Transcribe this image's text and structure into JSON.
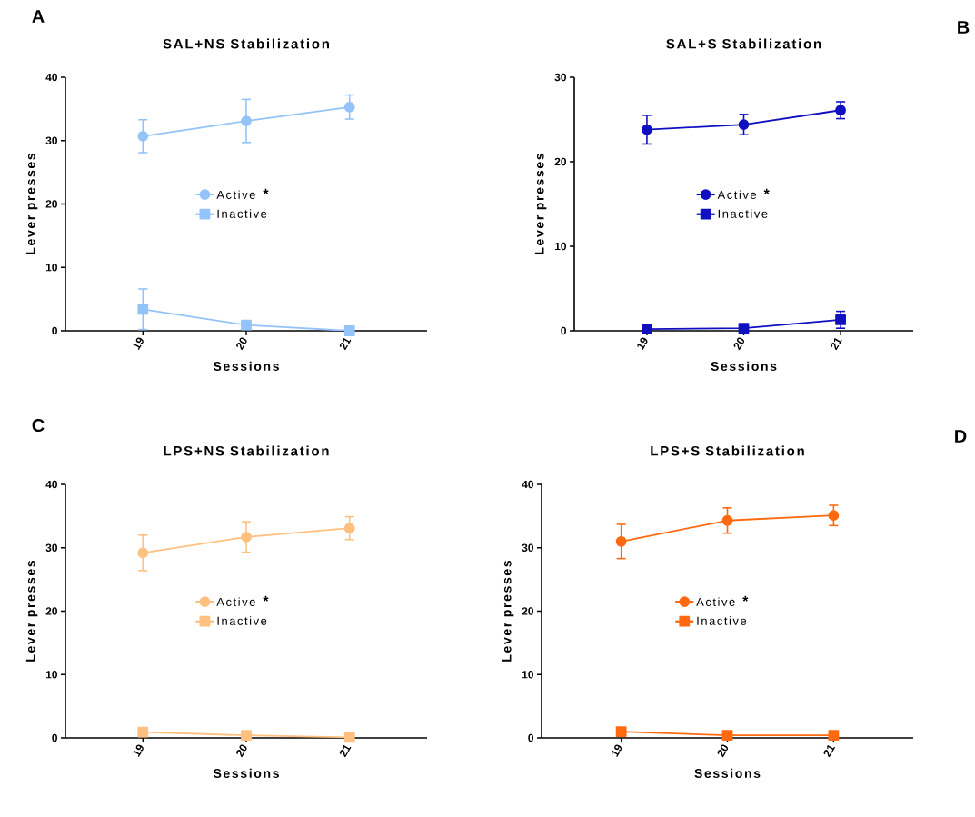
{
  "chart_data": [
    {
      "type": "line",
      "title": "SAL+NS Stabilization",
      "xlabel": "Sessions",
      "ylabel": "Lever presses",
      "categories": [
        "19",
        "20",
        "21"
      ],
      "ylim": [
        0,
        40
      ],
      "yticks": [
        0,
        10,
        20,
        30,
        40
      ],
      "legend": "center",
      "annotations": [
        "A",
        "*"
      ],
      "series": [
        {
          "name": "Active",
          "color": "#94c3fa",
          "marker": "circle",
          "values": [
            30.7,
            33.1,
            35.3
          ],
          "errors": [
            2.6,
            3.4,
            1.9
          ]
        },
        {
          "name": "Inactive",
          "color": "#94c3fa",
          "marker": "square",
          "values": [
            3.4,
            0.9,
            0
          ],
          "errors": [
            3.2,
            null,
            null
          ]
        }
      ]
    },
    {
      "type": "line",
      "title": "SAL+S Stabilization",
      "xlabel": "Sessions",
      "ylabel": "Lever presses",
      "categories": [
        "19",
        "20",
        "21"
      ],
      "ylim": [
        0,
        30
      ],
      "yticks": [
        0,
        10,
        20,
        30
      ],
      "legend": "center",
      "annotations": [
        "B",
        "*"
      ],
      "series": [
        {
          "name": "Active",
          "color": "#1010c0",
          "marker": "circle",
          "values": [
            23.8,
            24.4,
            26.1
          ],
          "errors": [
            1.7,
            1.2,
            1.0
          ]
        },
        {
          "name": "Inactive",
          "color": "#1010c0",
          "marker": "square",
          "values": [
            0.2,
            0.3,
            1.3
          ],
          "errors": [
            null,
            null,
            1.0
          ]
        }
      ]
    },
    {
      "type": "line",
      "title": "LPS+NS Stabilization",
      "xlabel": "Sessions",
      "ylabel": "Lever presses",
      "categories": [
        "19",
        "20",
        "21"
      ],
      "ylim": [
        0,
        40
      ],
      "yticks": [
        0,
        10,
        20,
        30,
        40
      ],
      "legend": "center",
      "annotations": [
        "C",
        "*"
      ],
      "series": [
        {
          "name": "Active",
          "color": "#ffc080",
          "marker": "circle",
          "values": [
            29.2,
            31.7,
            33.1
          ],
          "errors": [
            2.8,
            2.4,
            1.8
          ]
        },
        {
          "name": "Inactive",
          "color": "#ffc080",
          "marker": "square",
          "values": [
            0.9,
            0.4,
            0.1
          ],
          "errors": [
            null,
            null,
            null
          ]
        }
      ]
    },
    {
      "type": "line",
      "title": "LPS+S Stabilization",
      "xlabel": "Sessions",
      "ylabel": "Lever presses",
      "categories": [
        "19",
        "20",
        "21"
      ],
      "ylim": [
        0,
        40
      ],
      "yticks": [
        0,
        10,
        20,
        30,
        40
      ],
      "legend": "center",
      "annotations": [
        "D",
        "*"
      ],
      "series": [
        {
          "name": "Active",
          "color": "#ff6a10",
          "marker": "circle",
          "values": [
            31.0,
            34.3,
            35.1
          ],
          "errors": [
            2.7,
            2.0,
            1.6
          ]
        },
        {
          "name": "Inactive",
          "color": "#ff6a10",
          "marker": "square",
          "values": [
            1.0,
            0.4,
            0.4
          ],
          "errors": [
            null,
            null,
            null
          ]
        }
      ]
    }
  ]
}
